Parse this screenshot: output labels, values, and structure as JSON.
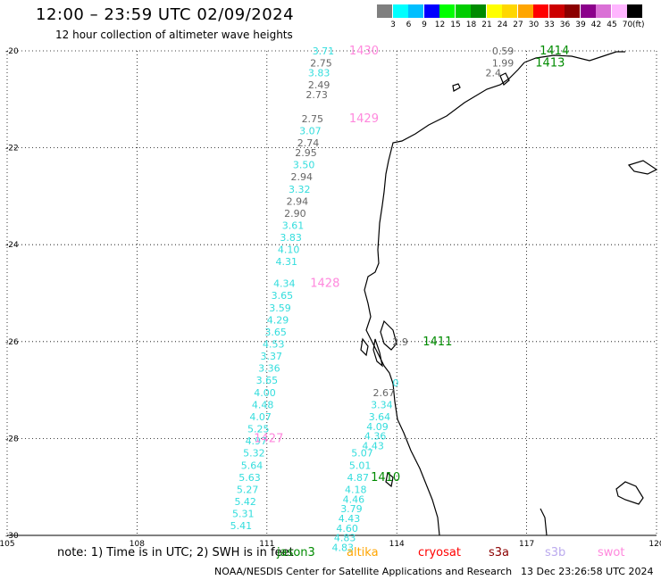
{
  "header": {
    "title": "12:00 – 23:59 UTC 02/09/2024",
    "subtitle": "12 hour collection of altimeter wave heights"
  },
  "colorbar": {
    "colors": [
      "#7f7f7f",
      "#00ffff",
      "#00bfff",
      "#0000ff",
      "#00ff00",
      "#00cd00",
      "#008b00",
      "#ffff00",
      "#ffd700",
      "#ffa500",
      "#ff0000",
      "#cd0000",
      "#8b0000",
      "#8b008b",
      "#da70d6",
      "#ffb6ff",
      "#000000"
    ],
    "ticks": [
      "3",
      "6",
      "9",
      "12",
      "15",
      "18",
      "21",
      "24",
      "27",
      "30",
      "33",
      "36",
      "39",
      "42",
      "45",
      "70"
    ],
    "unit": "(ft)"
  },
  "map": {
    "lon_min": 105,
    "lon_max": 120,
    "lat_min": -30,
    "lat_max": -20,
    "x_ticks": [
      "105",
      "108",
      "111",
      "114",
      "117",
      "120"
    ],
    "y_ticks": [
      "-20",
      "-22",
      "-24",
      "-26",
      "-28",
      "-30"
    ],
    "grid": "dotted"
  },
  "passes": [
    {
      "label": "1430",
      "color": "#ff88dd",
      "lon": 112.9,
      "lat": -20.0
    },
    {
      "label": "1429",
      "color": "#ff88dd",
      "lon": 112.9,
      "lat": -21.4
    },
    {
      "label": "1428",
      "color": "#ff88dd",
      "lon": 112.0,
      "lat": -24.8
    },
    {
      "label": "1427",
      "color": "#ff88dd",
      "lon": 110.7,
      "lat": -28.0
    },
    {
      "label": "1414",
      "color": "#008b00",
      "lon": 117.3,
      "lat": -20.0
    },
    {
      "label": "1413",
      "color": "#008b00",
      "lon": 117.2,
      "lat": -20.25
    },
    {
      "label": "1411",
      "color": "#008b00",
      "lon": 114.6,
      "lat": -26.0
    },
    {
      "label": "1410",
      "color": "#008b00",
      "lon": 113.4,
      "lat": -28.8
    }
  ],
  "swh_labels": [
    {
      "v": "3.71",
      "c": "#33dddd",
      "lon": 112.05,
      "lat": -20.0
    },
    {
      "v": "2.75",
      "c": "#666666",
      "lon": 112.0,
      "lat": -20.25
    },
    {
      "v": "3.83",
      "c": "#33dddd",
      "lon": 111.95,
      "lat": -20.45
    },
    {
      "v": "2.49",
      "c": "#666666",
      "lon": 111.95,
      "lat": -20.7
    },
    {
      "v": "2.73",
      "c": "#666666",
      "lon": 111.9,
      "lat": -20.9
    },
    {
      "v": "2.75",
      "c": "#666666",
      "lon": 111.8,
      "lat": -21.4
    },
    {
      "v": "3.07",
      "c": "#33dddd",
      "lon": 111.75,
      "lat": -21.65
    },
    {
      "v": "2.74",
      "c": "#666666",
      "lon": 111.7,
      "lat": -21.9
    },
    {
      "v": "2.95",
      "c": "#666666",
      "lon": 111.65,
      "lat": -22.1
    },
    {
      "v": "3.50",
      "c": "#33dddd",
      "lon": 111.6,
      "lat": -22.35
    },
    {
      "v": "2.94",
      "c": "#666666",
      "lon": 111.55,
      "lat": -22.6
    },
    {
      "v": "3.32",
      "c": "#33dddd",
      "lon": 111.5,
      "lat": -22.85
    },
    {
      "v": "2.94",
      "c": "#666666",
      "lon": 111.45,
      "lat": -23.1
    },
    {
      "v": "2.90",
      "c": "#666666",
      "lon": 111.4,
      "lat": -23.35
    },
    {
      "v": "3.61",
      "c": "#33dddd",
      "lon": 111.35,
      "lat": -23.6
    },
    {
      "v": "3.83",
      "c": "#33dddd",
      "lon": 111.3,
      "lat": -23.85
    },
    {
      "v": "4.10",
      "c": "#33dddd",
      "lon": 111.25,
      "lat": -24.1
    },
    {
      "v": "4.31",
      "c": "#33dddd",
      "lon": 111.2,
      "lat": -24.35
    },
    {
      "v": "4.34",
      "c": "#33dddd",
      "lon": 111.15,
      "lat": -24.8
    },
    {
      "v": "3.65",
      "c": "#33dddd",
      "lon": 111.1,
      "lat": -25.05
    },
    {
      "v": "3.59",
      "c": "#33dddd",
      "lon": 111.05,
      "lat": -25.3
    },
    {
      "v": "4.29",
      "c": "#33dddd",
      "lon": 111.0,
      "lat": -25.55
    },
    {
      "v": "3.65",
      "c": "#33dddd",
      "lon": 110.95,
      "lat": -25.8
    },
    {
      "v": "4.53",
      "c": "#33dddd",
      "lon": 110.9,
      "lat": -26.05
    },
    {
      "v": "3.37",
      "c": "#33dddd",
      "lon": 110.85,
      "lat": -26.3
    },
    {
      "v": "3.36",
      "c": "#33dddd",
      "lon": 110.8,
      "lat": -26.55
    },
    {
      "v": "3.65",
      "c": "#33dddd",
      "lon": 110.75,
      "lat": -26.8
    },
    {
      "v": "4.00",
      "c": "#33dddd",
      "lon": 110.7,
      "lat": -27.05
    },
    {
      "v": "4.48",
      "c": "#33dddd",
      "lon": 110.65,
      "lat": -27.3
    },
    {
      "v": "4.07",
      "c": "#33dddd",
      "lon": 110.6,
      "lat": -27.55
    },
    {
      "v": "5.25",
      "c": "#33dddd",
      "lon": 110.55,
      "lat": -27.8
    },
    {
      "v": "4.97",
      "c": "#33dddd",
      "lon": 110.5,
      "lat": -28.05
    },
    {
      "v": "5.32",
      "c": "#33dddd",
      "lon": 110.45,
      "lat": -28.3
    },
    {
      "v": "5.64",
      "c": "#33dddd",
      "lon": 110.4,
      "lat": -28.55
    },
    {
      "v": "5.63",
      "c": "#33dddd",
      "lon": 110.35,
      "lat": -28.8
    },
    {
      "v": "5.27",
      "c": "#33dddd",
      "lon": 110.3,
      "lat": -29.05
    },
    {
      "v": "5.42",
      "c": "#33dddd",
      "lon": 110.25,
      "lat": -29.3
    },
    {
      "v": "5.31",
      "c": "#33dddd",
      "lon": 110.2,
      "lat": -29.55
    },
    {
      "v": "5.41",
      "c": "#33dddd",
      "lon": 110.15,
      "lat": -29.8
    },
    {
      "v": "2.67",
      "c": "#666666",
      "lon": 113.45,
      "lat": -27.05
    },
    {
      "v": "3.34",
      "c": "#33dddd",
      "lon": 113.4,
      "lat": -27.3
    },
    {
      "v": "3.64",
      "c": "#33dddd",
      "lon": 113.35,
      "lat": -27.55
    },
    {
      "v": "4.09",
      "c": "#33dddd",
      "lon": 113.3,
      "lat": -27.75
    },
    {
      "v": "4.36",
      "c": "#33dddd",
      "lon": 113.25,
      "lat": -27.95
    },
    {
      "v": "4.43",
      "c": "#33dddd",
      "lon": 113.2,
      "lat": -28.15
    },
    {
      "v": "5.07",
      "c": "#33dddd",
      "lon": 112.95,
      "lat": -28.3
    },
    {
      "v": "5.01",
      "c": "#33dddd",
      "lon": 112.9,
      "lat": -28.55
    },
    {
      "v": "4.87",
      "c": "#33dddd",
      "lon": 112.85,
      "lat": -28.8
    },
    {
      "v": "4.18",
      "c": "#33dddd",
      "lon": 112.8,
      "lat": -29.05
    },
    {
      "v": "4.46",
      "c": "#33dddd",
      "lon": 112.75,
      "lat": -29.25
    },
    {
      "v": "3.79",
      "c": "#33dddd",
      "lon": 112.7,
      "lat": -29.45
    },
    {
      "v": "4.43",
      "c": "#33dddd",
      "lon": 112.65,
      "lat": -29.65
    },
    {
      "v": "4.60",
      "c": "#33dddd",
      "lon": 112.6,
      "lat": -29.85
    },
    {
      "v": "4.83",
      "c": "#33dddd",
      "lon": 112.55,
      "lat": -30.05
    },
    {
      "v": "4.83",
      "c": "#33dddd",
      "lon": 112.5,
      "lat": -30.25
    },
    {
      "v": "0.59",
      "c": "#666666",
      "lon": 116.2,
      "lat": -20.0
    },
    {
      "v": "1.99",
      "c": "#666666",
      "lon": 116.2,
      "lat": -20.25
    },
    {
      "v": "2.4",
      "c": "#666666",
      "lon": 116.05,
      "lat": -20.45
    },
    {
      "v": "2.9",
      "c": "#666666",
      "lon": 113.9,
      "lat": -26.0
    },
    {
      "v": "0",
      "c": "#33dddd",
      "lon": 113.9,
      "lat": -26.85
    }
  ],
  "footer": {
    "note": "note:  1) Time is in UTC; 2) SWH is in feet",
    "satellites": [
      {
        "name": "jason3",
        "color": "#008b00"
      },
      {
        "name": "altika",
        "color": "#ffa500"
      },
      {
        "name": "cryosat",
        "color": "#ff0000"
      },
      {
        "name": "s3a",
        "color": "#8b0000"
      },
      {
        "name": "s3b",
        "color": "#bbaaee"
      },
      {
        "name": "swot",
        "color": "#ff88dd"
      }
    ],
    "credit": "NOAA/NESDIS Center for Satellite Applications and Research",
    "timestamp": "13 Dec 23:26:58 UTC 2024"
  }
}
